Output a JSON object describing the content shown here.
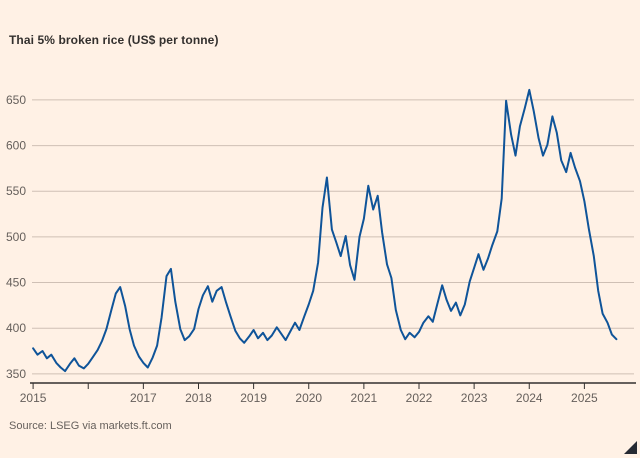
{
  "page": {
    "title": "Thai 5% broken rice (US$ per tonne)",
    "source": "Source: LSEG via markets.ft.com",
    "background_color": "#FFF1E5"
  },
  "chart_data": {
    "type": "line",
    "title": "Thai 5% broken rice (US$ per tonne)",
    "xlabel": "",
    "ylabel": "US$ per tonne",
    "source": "Source: LSEG via markets.ft.com",
    "grid": "horizontal",
    "legend": "none",
    "xlim": [
      2014.98,
      2025.9
    ],
    "ylim": [
      340,
      674
    ],
    "y_ticks": [
      350,
      400,
      450,
      500,
      550,
      600,
      650
    ],
    "x_ticks": [
      {
        "value": 2015,
        "label": "2015"
      },
      {
        "value": 2016,
        "label": ""
      },
      {
        "value": 2017,
        "label": "2017"
      },
      {
        "value": 2018,
        "label": "2018"
      },
      {
        "value": 2019,
        "label": "2019"
      },
      {
        "value": 2020,
        "label": "2020"
      },
      {
        "value": 2021,
        "label": "2021"
      },
      {
        "value": 2022,
        "label": "2022"
      },
      {
        "value": 2023,
        "label": "2023"
      },
      {
        "value": 2024,
        "label": "2024"
      },
      {
        "value": 2025,
        "label": "2025"
      }
    ],
    "colors": {
      "line": "#0f5499",
      "grid": "#cfc0b5",
      "axis": "#33302e",
      "tick_label": "#66605c"
    },
    "series": [
      {
        "name": "Thai 5% broken rice (US$ per tonne)",
        "color": "#0f5499",
        "points": [
          [
            2015.0,
            378
          ],
          [
            2015.08,
            371
          ],
          [
            2015.17,
            375
          ],
          [
            2015.25,
            367
          ],
          [
            2015.33,
            371
          ],
          [
            2015.42,
            362
          ],
          [
            2015.5,
            357
          ],
          [
            2015.58,
            353
          ],
          [
            2015.67,
            361
          ],
          [
            2015.75,
            367
          ],
          [
            2015.83,
            359
          ],
          [
            2015.92,
            356
          ],
          [
            2016.0,
            361
          ],
          [
            2016.08,
            368
          ],
          [
            2016.17,
            376
          ],
          [
            2016.25,
            386
          ],
          [
            2016.33,
            399
          ],
          [
            2016.42,
            420
          ],
          [
            2016.5,
            438
          ],
          [
            2016.58,
            445
          ],
          [
            2016.67,
            424
          ],
          [
            2016.75,
            399
          ],
          [
            2016.83,
            381
          ],
          [
            2016.92,
            369
          ],
          [
            2017.0,
            362
          ],
          [
            2017.08,
            357
          ],
          [
            2017.17,
            368
          ],
          [
            2017.25,
            381
          ],
          [
            2017.33,
            412
          ],
          [
            2017.42,
            457
          ],
          [
            2017.5,
            465
          ],
          [
            2017.58,
            429
          ],
          [
            2017.67,
            399
          ],
          [
            2017.75,
            387
          ],
          [
            2017.83,
            391
          ],
          [
            2017.92,
            399
          ],
          [
            2018.0,
            421
          ],
          [
            2018.08,
            436
          ],
          [
            2018.17,
            446
          ],
          [
            2018.25,
            429
          ],
          [
            2018.33,
            441
          ],
          [
            2018.42,
            445
          ],
          [
            2018.5,
            428
          ],
          [
            2018.58,
            413
          ],
          [
            2018.67,
            397
          ],
          [
            2018.75,
            389
          ],
          [
            2018.83,
            384
          ],
          [
            2018.92,
            391
          ],
          [
            2019.0,
            398
          ],
          [
            2019.08,
            389
          ],
          [
            2019.17,
            395
          ],
          [
            2019.25,
            387
          ],
          [
            2019.33,
            392
          ],
          [
            2019.42,
            401
          ],
          [
            2019.5,
            394
          ],
          [
            2019.58,
            387
          ],
          [
            2019.67,
            397
          ],
          [
            2019.75,
            406
          ],
          [
            2019.83,
            398
          ],
          [
            2019.92,
            413
          ],
          [
            2020.0,
            426
          ],
          [
            2020.08,
            441
          ],
          [
            2020.17,
            472
          ],
          [
            2020.25,
            532
          ],
          [
            2020.33,
            565
          ],
          [
            2020.42,
            508
          ],
          [
            2020.5,
            494
          ],
          [
            2020.58,
            479
          ],
          [
            2020.67,
            501
          ],
          [
            2020.75,
            469
          ],
          [
            2020.83,
            453
          ],
          [
            2020.92,
            500
          ],
          [
            2021.0,
            520
          ],
          [
            2021.08,
            556
          ],
          [
            2021.17,
            530
          ],
          [
            2021.25,
            545
          ],
          [
            2021.33,
            505
          ],
          [
            2021.42,
            470
          ],
          [
            2021.5,
            455
          ],
          [
            2021.58,
            420
          ],
          [
            2021.67,
            398
          ],
          [
            2021.75,
            388
          ],
          [
            2021.83,
            395
          ],
          [
            2021.92,
            390
          ],
          [
            2022.0,
            396
          ],
          [
            2022.08,
            406
          ],
          [
            2022.17,
            413
          ],
          [
            2022.25,
            407
          ],
          [
            2022.33,
            426
          ],
          [
            2022.42,
            447
          ],
          [
            2022.5,
            431
          ],
          [
            2022.58,
            419
          ],
          [
            2022.67,
            428
          ],
          [
            2022.75,
            414
          ],
          [
            2022.83,
            426
          ],
          [
            2022.92,
            451
          ],
          [
            2023.0,
            466
          ],
          [
            2023.08,
            481
          ],
          [
            2023.17,
            464
          ],
          [
            2023.25,
            476
          ],
          [
            2023.33,
            491
          ],
          [
            2023.42,
            506
          ],
          [
            2023.5,
            542
          ],
          [
            2023.58,
            649
          ],
          [
            2023.67,
            612
          ],
          [
            2023.75,
            589
          ],
          [
            2023.83,
            621
          ],
          [
            2023.92,
            641
          ],
          [
            2024.0,
            661
          ],
          [
            2024.08,
            638
          ],
          [
            2024.17,
            608
          ],
          [
            2024.25,
            589
          ],
          [
            2024.33,
            601
          ],
          [
            2024.42,
            632
          ],
          [
            2024.5,
            614
          ],
          [
            2024.58,
            584
          ],
          [
            2024.67,
            571
          ],
          [
            2024.75,
            592
          ],
          [
            2024.83,
            576
          ],
          [
            2024.92,
            561
          ],
          [
            2025.0,
            539
          ],
          [
            2025.08,
            509
          ],
          [
            2025.17,
            479
          ],
          [
            2025.25,
            441
          ],
          [
            2025.33,
            416
          ],
          [
            2025.42,
            406
          ],
          [
            2025.5,
            393
          ],
          [
            2025.58,
            388
          ]
        ]
      }
    ]
  }
}
